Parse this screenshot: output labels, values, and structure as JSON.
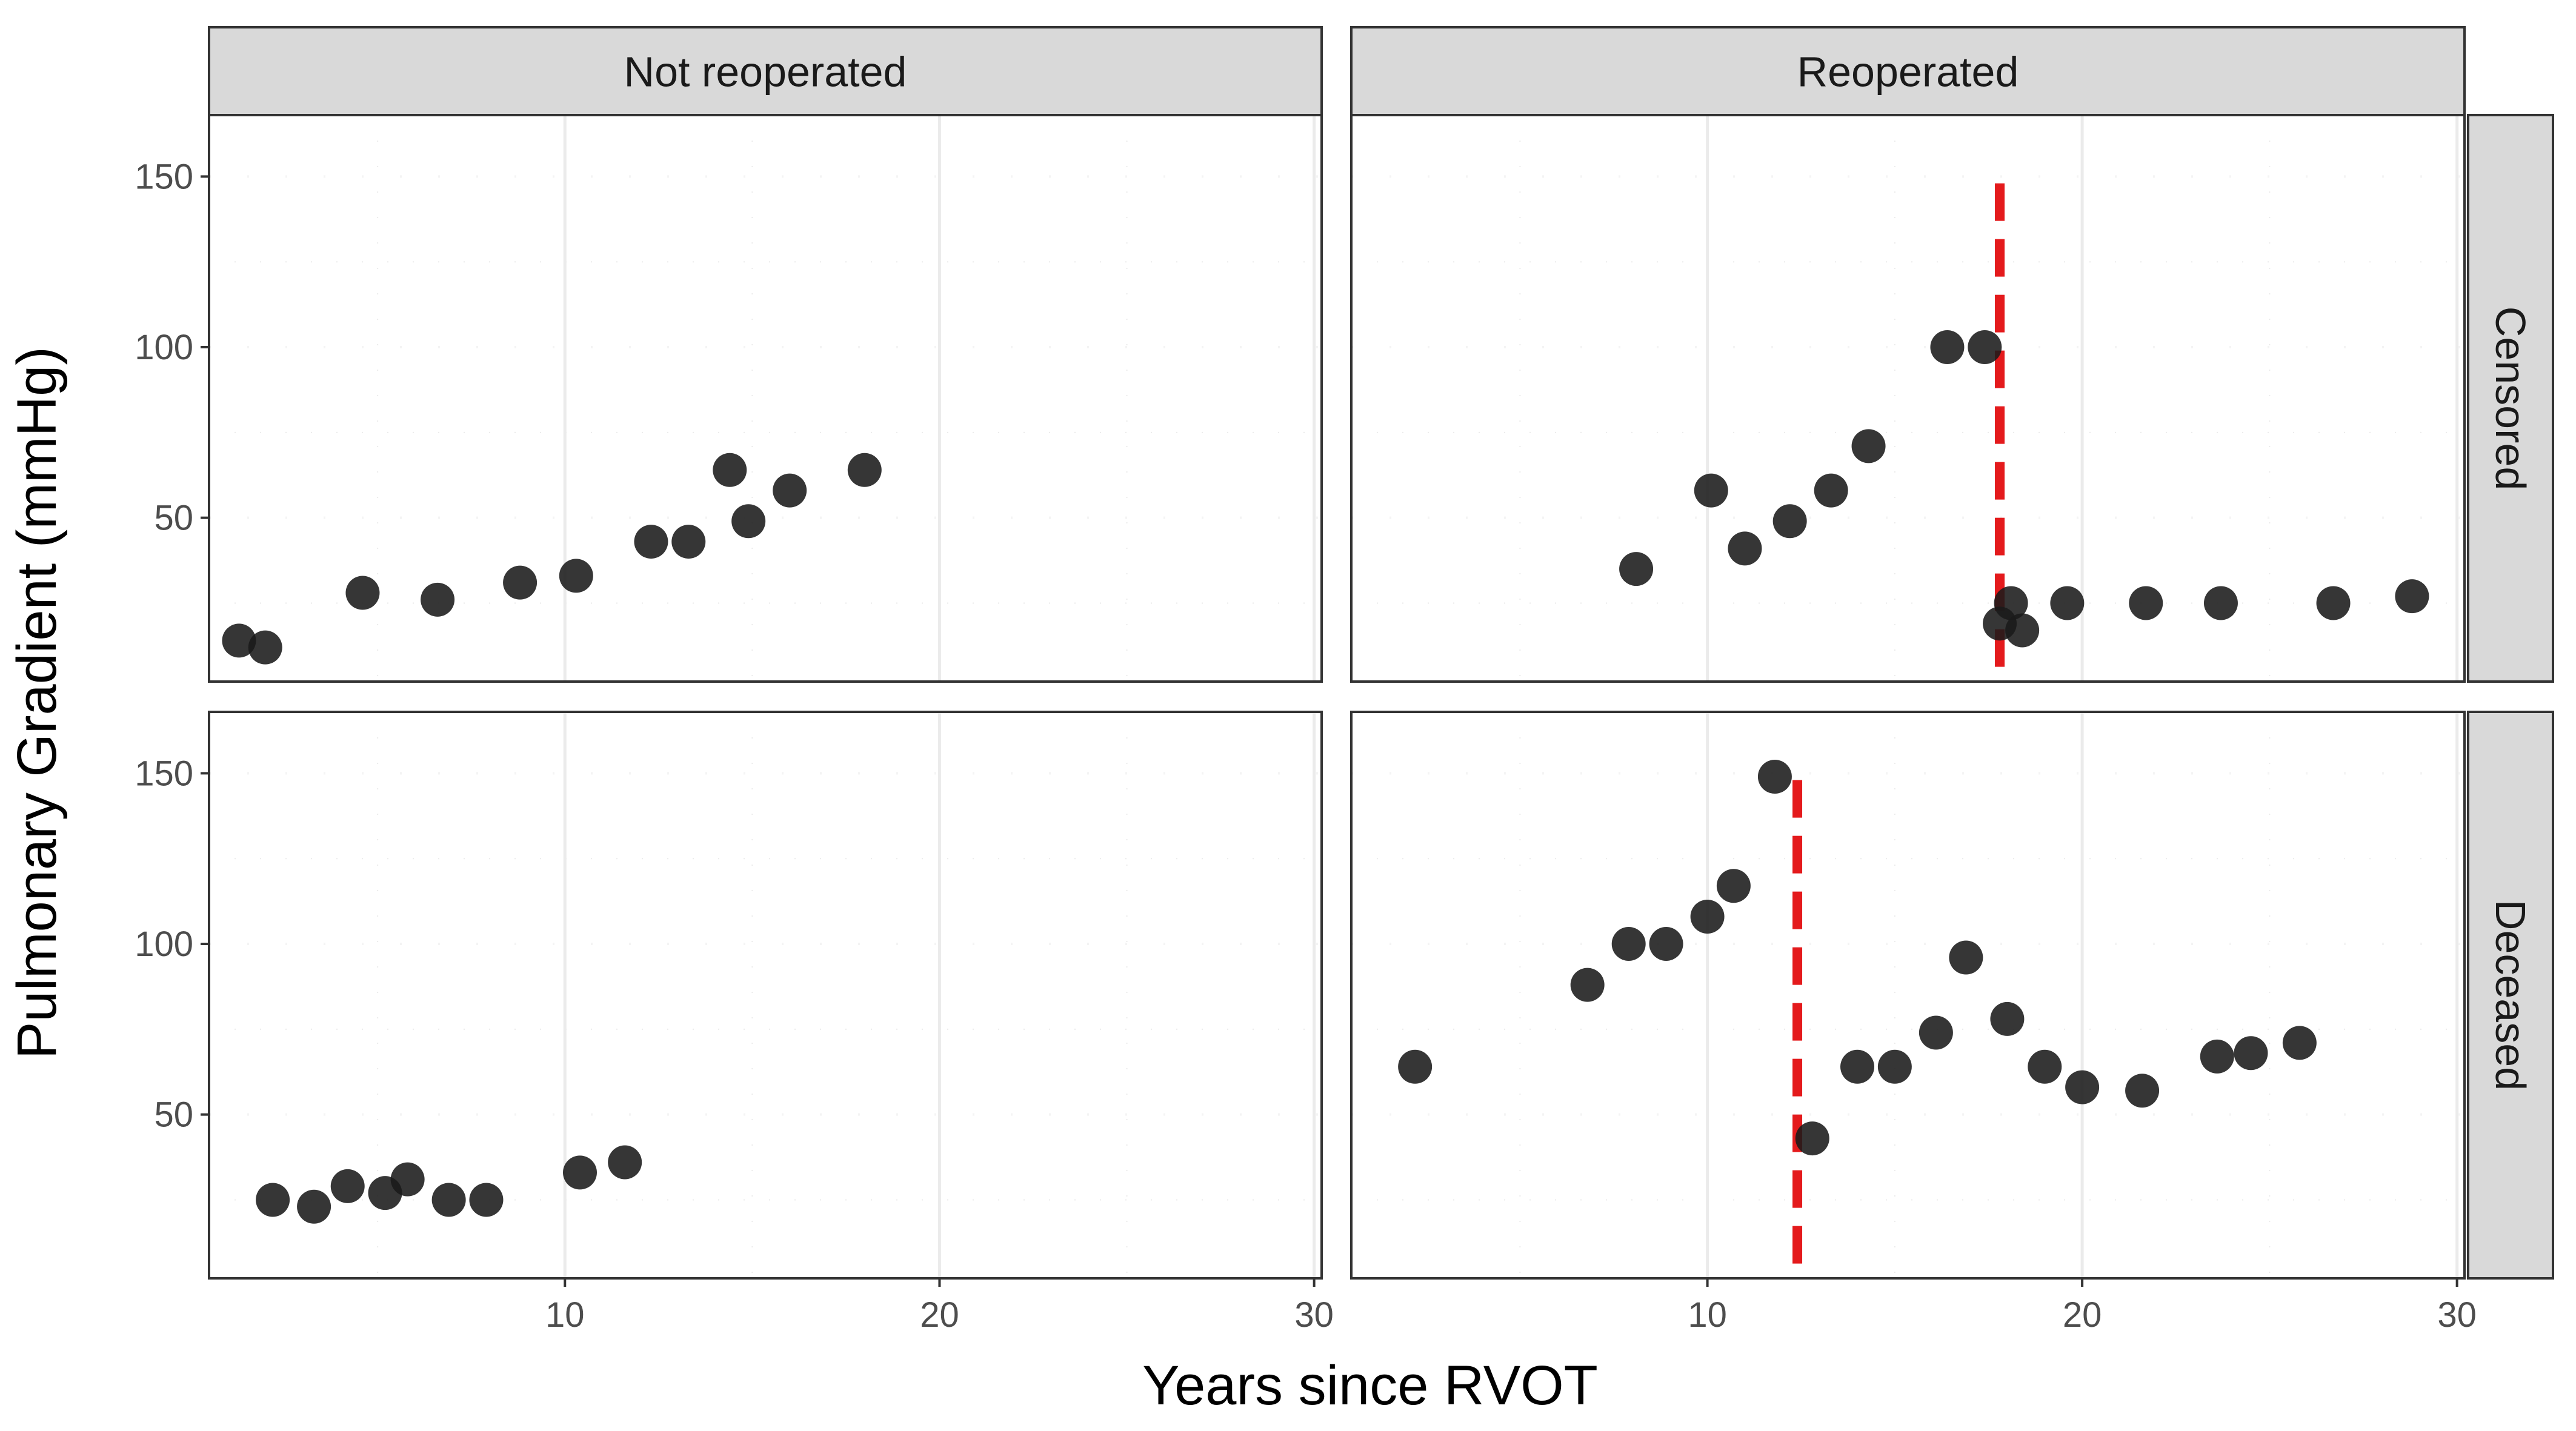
{
  "chart_data": {
    "type": "scatter",
    "xlabel": "Years since RVOT",
    "ylabel": "Pulmonary Gradient (mmHg)",
    "xlim": [
      0.5,
      30.2
    ],
    "ylim": [
      2,
      168
    ],
    "x_ticks": [
      10,
      20,
      30
    ],
    "y_ticks": [
      50,
      100,
      150
    ],
    "grid": true,
    "col_facets": [
      "Not reoperated",
      "Reoperated"
    ],
    "row_facets": [
      "Censored",
      "Deceased"
    ],
    "colors": {
      "point": "#1a1a1a",
      "reoperation_line": "#e41a1c",
      "strip_fill": "#d9d9d9",
      "grid": "#ebebeb"
    },
    "panels": [
      {
        "col": "Not reoperated",
        "row": "Censored",
        "points": [
          [
            1.3,
            14
          ],
          [
            2.0,
            12
          ],
          [
            4.6,
            28
          ],
          [
            6.6,
            26
          ],
          [
            8.8,
            31
          ],
          [
            10.3,
            33
          ],
          [
            12.3,
            43
          ],
          [
            13.3,
            43
          ],
          [
            14.4,
            64
          ],
          [
            14.9,
            49
          ],
          [
            16.0,
            58
          ],
          [
            18.0,
            64
          ]
        ]
      },
      {
        "col": "Reoperated",
        "row": "Censored",
        "reoperation_year": 17.8,
        "points": [
          [
            8.1,
            35
          ],
          [
            10.1,
            58
          ],
          [
            11.0,
            41
          ],
          [
            12.2,
            49
          ],
          [
            13.3,
            58
          ],
          [
            14.3,
            71
          ],
          [
            16.4,
            100
          ],
          [
            17.4,
            100
          ],
          [
            17.8,
            19
          ],
          [
            18.1,
            25
          ],
          [
            18.4,
            17
          ],
          [
            19.6,
            25
          ],
          [
            21.7,
            25
          ],
          [
            23.7,
            25
          ],
          [
            26.7,
            25
          ],
          [
            28.8,
            27
          ]
        ]
      },
      {
        "col": "Not reoperated",
        "row": "Deceased",
        "points": [
          [
            2.2,
            25
          ],
          [
            3.3,
            23
          ],
          [
            4.2,
            29
          ],
          [
            5.2,
            27
          ],
          [
            5.8,
            31
          ],
          [
            6.9,
            25
          ],
          [
            7.9,
            25
          ],
          [
            10.4,
            33
          ],
          [
            11.6,
            36
          ]
        ]
      },
      {
        "col": "Reoperated",
        "row": "Deceased",
        "reoperation_year": 12.4,
        "points": [
          [
            2.2,
            64
          ],
          [
            6.8,
            88
          ],
          [
            7.9,
            100
          ],
          [
            8.9,
            100
          ],
          [
            10.0,
            108
          ],
          [
            10.7,
            117
          ],
          [
            11.8,
            149
          ],
          [
            12.8,
            43
          ],
          [
            14.0,
            64
          ],
          [
            15.0,
            64
          ],
          [
            16.1,
            74
          ],
          [
            16.9,
            96
          ],
          [
            18.0,
            78
          ],
          [
            19.0,
            64
          ],
          [
            20.0,
            58
          ],
          [
            21.6,
            57
          ],
          [
            23.6,
            67
          ],
          [
            24.5,
            68
          ],
          [
            25.8,
            71
          ]
        ]
      }
    ]
  }
}
